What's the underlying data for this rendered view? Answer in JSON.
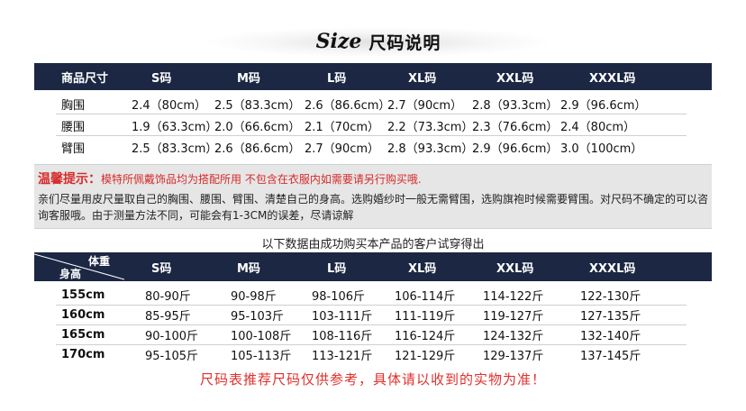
{
  "title": {
    "en": "Size",
    "cn": "尺码说明"
  },
  "size_table": {
    "headers": [
      "商品尺寸",
      "S码",
      "M码",
      "L码",
      "XL码",
      "XXL码",
      "XXXL码"
    ],
    "rows": [
      {
        "label": "胸围",
        "values": [
          "2.4（80cm）",
          "2.5（83.3cm）",
          "2.6（86.6cm）",
          "2.7（90cm）",
          "2.8（93.3cm）",
          "2.9（96.6cm）"
        ]
      },
      {
        "label": "腰围",
        "values": [
          "1.9（63.3cm）",
          "2.0（66.6cm）",
          "2.1（70cm）",
          "2.2（73.3cm）",
          "2.3（76.6cm）",
          "2.4（80cm）"
        ]
      },
      {
        "label": "臂围",
        "values": [
          "2.5（83.3cm）",
          "2.6（86.6cm）",
          "2.7（90cm）",
          "2.8（93.3cm）",
          "2.9（96.6cm）",
          "3.0（100cm）"
        ]
      }
    ]
  },
  "notice": {
    "label": "温馨提示：",
    "line1": "模特所佩戴饰品均为搭配所用 不包含在衣服内如需要请另行购买哦.",
    "line2": "亲们尽量用皮尺量取自己的胸围、腰围、臂围、清楚自己的身高。选购婚纱时一般无需臂围，选购旗袍时候需要臂围。对尺码不确定的可以咨询客服哦。由于测量方法不同，可能会有1-3CM的误差，尽请谅解"
  },
  "customer_caption": "以下数据由成功购买本产品的客户试穿得出",
  "customer_table": {
    "corner_top": "体重",
    "corner_bottom": "身高",
    "headers": [
      "S码",
      "M码",
      "L码",
      "XL码",
      "XXL码",
      "XXXL码"
    ],
    "rows": [
      {
        "height": "155cm",
        "values": [
          "80-90斤",
          "90-98斤",
          "98-106斤",
          "106-114斤",
          "114-122斤",
          "122-130斤"
        ]
      },
      {
        "height": "160cm",
        "values": [
          "85-95斤",
          "95-103斤",
          "103-111斤",
          "111-119斤",
          "119-127斤",
          "127-135斤"
        ]
      },
      {
        "height": "165cm",
        "values": [
          "90-100斤",
          "100-108斤",
          "108-116斤",
          "116-124斤",
          "124-132斤",
          "132-140斤"
        ]
      },
      {
        "height": "170cm",
        "values": [
          "95-105斤",
          "105-113斤",
          "113-121斤",
          "121-129斤",
          "129-137斤",
          "137-145斤"
        ]
      }
    ]
  },
  "footer": "尺码表推荐尺码仅供参考，具体请以收到的实物为准！",
  "colors": {
    "header_bg": "#1b2743",
    "accent_red": "#d72b2b",
    "notice_bg": "#e6e6e6"
  }
}
